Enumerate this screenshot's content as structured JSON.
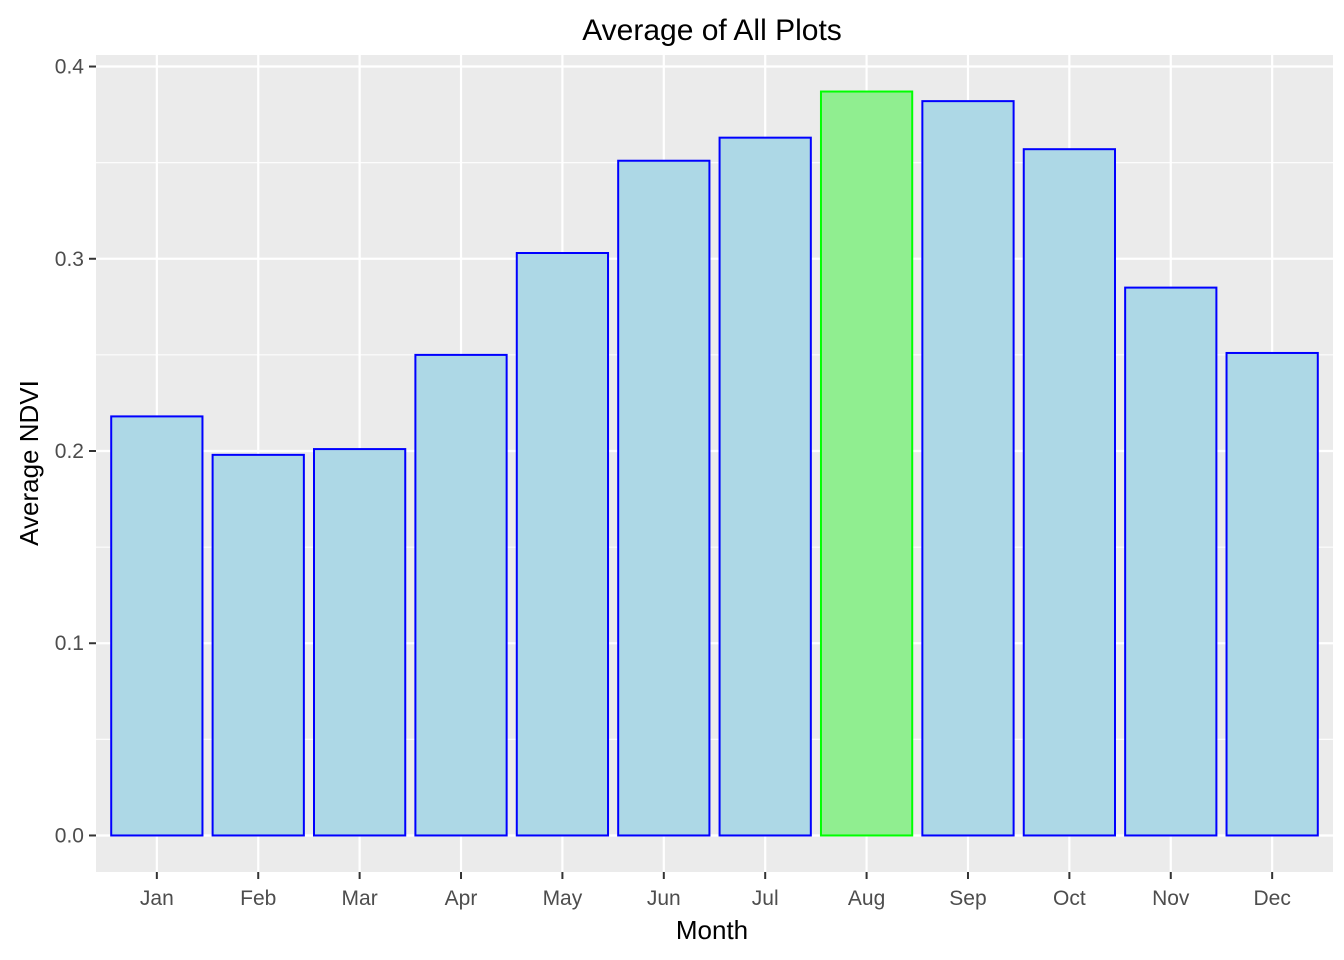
{
  "chart_data": {
    "type": "bar",
    "title": "Average of All Plots",
    "xlabel": "Month",
    "ylabel": "Average NDVI",
    "categories": [
      "Jan",
      "Feb",
      "Mar",
      "Apr",
      "May",
      "Jun",
      "Jul",
      "Aug",
      "Sep",
      "Oct",
      "Nov",
      "Dec"
    ],
    "values": [
      0.218,
      0.198,
      0.201,
      0.25,
      0.303,
      0.351,
      0.363,
      0.387,
      0.382,
      0.357,
      0.285,
      0.251
    ],
    "highlight": "Aug",
    "ylim": [
      -0.019,
      0.406
    ],
    "yticks": [
      0.0,
      0.1,
      0.2,
      0.3,
      0.4
    ],
    "ytick_labels": [
      "0.0",
      "0.1",
      "0.2",
      "0.3",
      "0.4"
    ],
    "grid": true,
    "legend": "none",
    "colors": {
      "panel_background": "#ebebeb",
      "grid": "#ffffff",
      "bar_fill": "#add8e6",
      "bar_border": "#0000ff",
      "highlight_fill": "#90ee90",
      "highlight_border": "#00ff00",
      "tick_label": "#4d4d4d",
      "tick_mark": "#333333"
    }
  }
}
